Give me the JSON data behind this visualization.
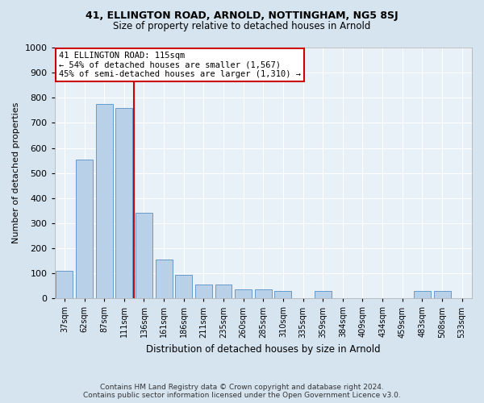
{
  "title1": "41, ELLINGTON ROAD, ARNOLD, NOTTINGHAM, NG5 8SJ",
  "title2": "Size of property relative to detached houses in Arnold",
  "xlabel": "Distribution of detached houses by size in Arnold",
  "ylabel": "Number of detached properties",
  "categories": [
    "37sqm",
    "62sqm",
    "87sqm",
    "111sqm",
    "136sqm",
    "161sqm",
    "186sqm",
    "211sqm",
    "235sqm",
    "260sqm",
    "285sqm",
    "310sqm",
    "335sqm",
    "359sqm",
    "384sqm",
    "409sqm",
    "434sqm",
    "459sqm",
    "483sqm",
    "508sqm",
    "533sqm"
  ],
  "values": [
    110,
    555,
    775,
    760,
    340,
    155,
    95,
    55,
    55,
    35,
    35,
    30,
    0,
    30,
    0,
    0,
    0,
    0,
    30,
    30,
    0
  ],
  "bar_color": "#b8d0e8",
  "bar_edge_color": "#6699cc",
  "vline_x_index": 3,
  "vline_color": "#cc0000",
  "annotation_line1": "41 ELLINGTON ROAD: 115sqm",
  "annotation_line2": "← 54% of detached houses are smaller (1,567)",
  "annotation_line3": "45% of semi-detached houses are larger (1,310) →",
  "annotation_box_facecolor": "#ffffff",
  "annotation_box_edgecolor": "#cc0000",
  "ylim": [
    0,
    1000
  ],
  "yticks": [
    0,
    100,
    200,
    300,
    400,
    500,
    600,
    700,
    800,
    900,
    1000
  ],
  "footer1": "Contains HM Land Registry data © Crown copyright and database right 2024.",
  "footer2": "Contains public sector information licensed under the Open Government Licence v3.0.",
  "fig_bg_color": "#d6e4f0",
  "plot_bg_color": "#e8f0f8",
  "title1_fontsize": 9,
  "title2_fontsize": 8.5,
  "xlabel_fontsize": 8.5,
  "ylabel_fontsize": 8,
  "xtick_fontsize": 7,
  "ytick_fontsize": 8,
  "footer_fontsize": 6.5,
  "annotation_fontsize": 7.5
}
